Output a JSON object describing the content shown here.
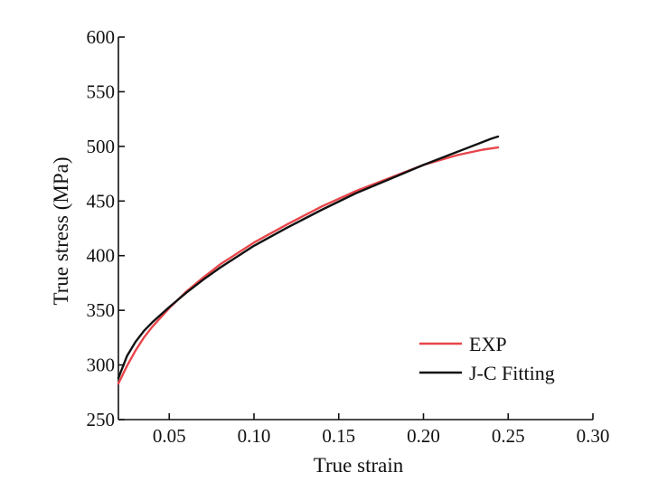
{
  "chart_data": {
    "type": "line",
    "title": "",
    "xlabel": "True strain",
    "ylabel": "True stress (MPa)",
    "xlim": [
      0.02,
      0.3
    ],
    "ylim": [
      250,
      600
    ],
    "x_ticks": [
      0.05,
      0.1,
      0.15,
      0.2,
      0.25,
      0.3
    ],
    "x_tick_labels": [
      "0.05",
      "0.10",
      "0.15",
      "0.20",
      "0.25",
      "0.30"
    ],
    "y_ticks": [
      250,
      300,
      350,
      400,
      450,
      500,
      550,
      600
    ],
    "y_tick_labels": [
      "250",
      "300",
      "350",
      "400",
      "450",
      "500",
      "550",
      "600"
    ],
    "grid": false,
    "legend_position": "bottom-right",
    "series": [
      {
        "name": "EXP",
        "color": "#e8454a",
        "x": [
          0.02,
          0.025,
          0.03,
          0.035,
          0.04,
          0.05,
          0.06,
          0.07,
          0.08,
          0.09,
          0.1,
          0.12,
          0.14,
          0.16,
          0.18,
          0.2,
          0.22,
          0.235,
          0.244
        ],
        "y": [
          283,
          299,
          313,
          325,
          335,
          352,
          367,
          380,
          392,
          402,
          412,
          429,
          445,
          459,
          471,
          483,
          492,
          497,
          499
        ]
      },
      {
        "name": "J-C Fitting",
        "color": "#111111",
        "x": [
          0.02,
          0.025,
          0.03,
          0.035,
          0.04,
          0.05,
          0.06,
          0.07,
          0.08,
          0.09,
          0.1,
          0.12,
          0.14,
          0.16,
          0.18,
          0.2,
          0.22,
          0.24,
          0.244
        ],
        "y": [
          288,
          308,
          321,
          331,
          339,
          353,
          366,
          378,
          389,
          399,
          409,
          426,
          442,
          457,
          470,
          483,
          495,
          507,
          509
        ]
      }
    ]
  }
}
